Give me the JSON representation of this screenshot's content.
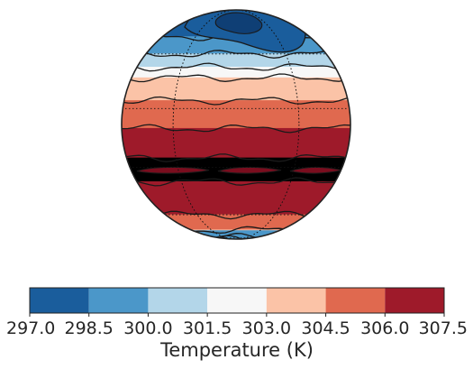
{
  "colorbar": {
    "label": "Temperature (K)",
    "levels": [
      297.0,
      298.5,
      300.0,
      301.5,
      303.0,
      304.5,
      306.0,
      307.5
    ],
    "tick_labels": [
      "297.0",
      "298.5",
      "300.0",
      "301.5",
      "303.0",
      "304.5",
      "306.0",
      "307.5"
    ],
    "colors": [
      "#1a5d9c",
      "#4b97c9",
      "#b3d6e9",
      "#f7f7f7",
      "#fbc3a7",
      "#e0694f",
      "#9e1a2a"
    ]
  },
  "map": {
    "projection": "orthographic",
    "variable": "temperature",
    "units": "K",
    "bands": [
      {
        "lat_top": 90,
        "lat_bottom": 72,
        "level": 0
      },
      {
        "lat_top": 72,
        "lat_bottom": 60,
        "level": 1
      },
      {
        "lat_top": 60,
        "lat_bottom": 52,
        "level": 2
      },
      {
        "lat_top": 52,
        "lat_bottom": 46,
        "level": 3
      },
      {
        "lat_top": 46,
        "lat_bottom": 34,
        "level": 4
      },
      {
        "lat_top": 34,
        "lat_bottom": 20,
        "level": 5
      },
      {
        "lat_top": 20,
        "lat_bottom": 5,
        "level": 6
      },
      {
        "lat_top": 5,
        "lat_bottom": -8,
        "level": 7
      },
      {
        "lat_top": -8,
        "lat_bottom": -30,
        "level": 6
      },
      {
        "lat_top": -30,
        "lat_bottom": -45,
        "level": 5
      },
      {
        "lat_top": -45,
        "lat_bottom": -58,
        "level": 4
      },
      {
        "lat_top": -58,
        "lat_bottom": -66,
        "level": 3
      },
      {
        "lat_top": -66,
        "lat_bottom": -72,
        "level": 2
      },
      {
        "lat_top": -72,
        "lat_bottom": -90,
        "level": 1
      }
    ],
    "gridlines": "dotted"
  }
}
